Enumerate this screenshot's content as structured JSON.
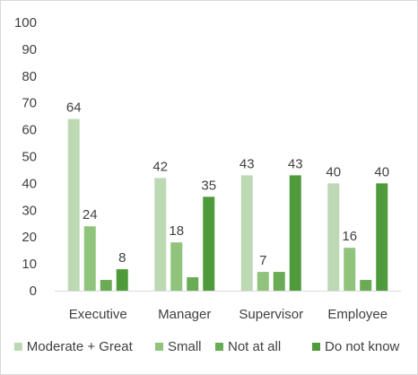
{
  "chart_data": {
    "type": "bar",
    "categories": [
      "Executive",
      "Manager",
      "Supervisor",
      "Employee"
    ],
    "series": [
      {
        "name": "Moderate + Great",
        "color": "#bcd9b3",
        "values": [
          64,
          42,
          43,
          40
        ]
      },
      {
        "name": "Small",
        "color": "#90c47c",
        "values": [
          24,
          18,
          7,
          16
        ]
      },
      {
        "name": "Not at all",
        "color": "#6aab55",
        "values": [
          4,
          5,
          7,
          4
        ]
      },
      {
        "name": "Do not know",
        "color": "#4f9a3a",
        "values": [
          8,
          35,
          43,
          40
        ]
      }
    ],
    "data_labels": [
      [
        "64",
        "42",
        "43",
        "40"
      ],
      [
        "24",
        "18",
        "7",
        "16"
      ],
      [
        "",
        "",
        "",
        ""
      ],
      [
        "8",
        "35",
        "43",
        "40"
      ]
    ],
    "ylim": [
      0,
      100
    ],
    "yticks": [
      0,
      10,
      20,
      30,
      40,
      50,
      60,
      70,
      80,
      90,
      100
    ],
    "grid": false,
    "legend_position": "bottom"
  }
}
